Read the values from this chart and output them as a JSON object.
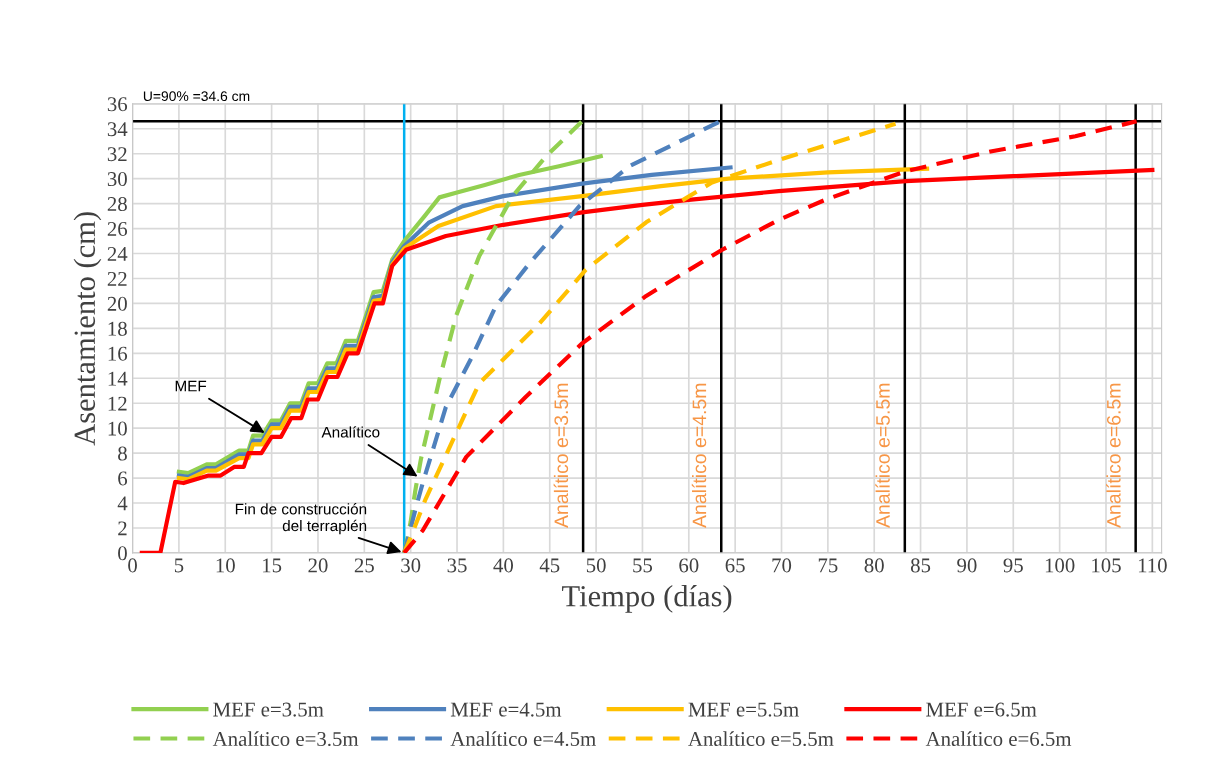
{
  "chart_data": {
    "type": "line",
    "xlabel": "Tiempo (días)",
    "ylabel": "Asentamiento (cm)",
    "xlim": [
      0,
      111
    ],
    "ylim": [
      0,
      36
    ],
    "xticks": [
      0,
      5,
      10,
      15,
      20,
      25,
      30,
      35,
      40,
      45,
      50,
      55,
      60,
      65,
      70,
      75,
      80,
      85,
      90,
      95,
      100,
      105,
      110
    ],
    "yticks": [
      0,
      2,
      4,
      6,
      8,
      10,
      12,
      14,
      16,
      18,
      20,
      22,
      24,
      26,
      28,
      30,
      32,
      34,
      36
    ],
    "grid": true,
    "legend": "bottom",
    "marker": "none",
    "series": [
      {
        "name": "MEF e=3.5m",
        "color": "#92d050",
        "line_style": "solid",
        "x": [
          5,
          6,
          8,
          9,
          11.5,
          12.5,
          13,
          14,
          15,
          16,
          17,
          18.2,
          19,
          20,
          21,
          22,
          23,
          24.3,
          26,
          27,
          28,
          29.3,
          31.5,
          33.1,
          35,
          38,
          41.7,
          46,
          50.5
        ],
        "values": [
          6.5,
          6.4,
          7.1,
          7.1,
          8.2,
          8.2,
          9.4,
          9.4,
          10.6,
          10.6,
          12.0,
          12.0,
          13.6,
          13.6,
          15.2,
          15.2,
          17.0,
          17.0,
          20.9,
          21.0,
          23.5,
          25.0,
          27.0,
          28.5,
          28.9,
          29.5,
          30.3,
          31.0,
          31.8
        ]
      },
      {
        "name": "MEF e=4.5m",
        "color": "#4f81bd",
        "line_style": "solid",
        "x": [
          5,
          6,
          8,
          9,
          11.5,
          12.5,
          13,
          14,
          15,
          16,
          17,
          18.2,
          19,
          20,
          21,
          22,
          23,
          24.3,
          26,
          27,
          28,
          29.3,
          32,
          35.6,
          40,
          48.5,
          56,
          64.5
        ],
        "values": [
          6.2,
          6.1,
          6.8,
          6.8,
          7.9,
          7.9,
          9.0,
          9.0,
          10.3,
          10.3,
          11.7,
          11.7,
          13.2,
          13.2,
          14.8,
          14.8,
          16.6,
          16.6,
          20.5,
          20.6,
          23.3,
          24.6,
          26.5,
          27.8,
          28.6,
          29.6,
          30.3,
          30.9
        ]
      },
      {
        "name": "MEF e=5.5m",
        "color": "#ffc000",
        "line_style": "solid",
        "x": [
          5,
          6,
          8,
          9,
          11.5,
          12.5,
          13,
          14,
          15,
          16,
          17,
          18.2,
          19,
          20,
          21,
          22,
          23,
          24.3,
          26,
          27,
          28,
          29.3,
          33,
          39.2,
          48.5,
          57,
          64.3,
          75,
          85.7
        ],
        "values": [
          6.0,
          5.9,
          6.6,
          6.6,
          7.6,
          7.6,
          8.7,
          8.7,
          10.0,
          10.0,
          11.4,
          11.4,
          12.9,
          12.9,
          14.5,
          14.5,
          16.3,
          16.3,
          20.2,
          20.3,
          23.1,
          24.4,
          26.2,
          27.8,
          28.6,
          29.4,
          30.0,
          30.5,
          30.8
        ]
      },
      {
        "name": "MEF e=6.5m",
        "color": "#ff0000",
        "line_style": "solid",
        "x": [
          1,
          2,
          3,
          4.6,
          5.5,
          8.2,
          9.5,
          11,
          12,
          12.5,
          13.9,
          15,
          16,
          17.1,
          18.2,
          18.9,
          20,
          21,
          22.1,
          23.2,
          24.3,
          26.1,
          27,
          28,
          29.5,
          33.8,
          40,
          48.5,
          55,
          60,
          69.7,
          83.4,
          95,
          110
        ],
        "values": [
          0,
          0,
          0,
          5.7,
          5.6,
          6.2,
          6.2,
          6.9,
          6.9,
          8.0,
          8.0,
          9.3,
          9.3,
          10.8,
          10.8,
          12.3,
          12.3,
          14.1,
          14.1,
          16.0,
          16.0,
          20.0,
          20.0,
          23.0,
          24.3,
          25.4,
          26.3,
          27.3,
          27.9,
          28.3,
          29.0,
          29.8,
          30.2,
          30.7
        ]
      },
      {
        "name": "Analítico e=3.5m",
        "color": "#92d050",
        "line_style": "dashed",
        "x": [
          29.3,
          29.6,
          30,
          30.5,
          31.1,
          33.1,
          34.9,
          37.4,
          41.0,
          44.6,
          48.5
        ],
        "values": [
          0,
          1,
          2.5,
          5,
          7.5,
          13.9,
          19.0,
          23.8,
          28.6,
          31.8,
          34.6
        ]
      },
      {
        "name": "Analítico e=4.5m",
        "color": "#4f81bd",
        "line_style": "dashed",
        "x": [
          29.3,
          30,
          30.7,
          31.3,
          33.8,
          36.6,
          39.2,
          42.8,
          48.2,
          53.6,
          63.4
        ],
        "values": [
          0,
          2,
          4,
          5.6,
          11.7,
          15.7,
          19.8,
          23.2,
          27.8,
          31.0,
          34.6
        ]
      },
      {
        "name": "Analítico e=5.5m",
        "color": "#ffc000",
        "line_style": "dashed",
        "x": [
          29.3,
          30.3,
          31.6,
          37.4,
          43.9,
          48.9,
          55.4,
          62.5,
          69.7,
          82.3
        ],
        "values": [
          0,
          1.8,
          4.3,
          13.6,
          18.4,
          22.7,
          26.5,
          29.7,
          31.5,
          34.4
        ]
      },
      {
        "name": "Analítico e=6.5m",
        "color": "#ff0000",
        "line_style": "dashed",
        "x": [
          29.3,
          31.3,
          36,
          42.4,
          48.5,
          55.4,
          63.6,
          69.7,
          74.7,
          83.4,
          92.7,
          101.7,
          108.3
        ],
        "values": [
          0,
          1.8,
          7.7,
          12.5,
          16.8,
          20.6,
          24.3,
          26.7,
          28.3,
          30.6,
          32.2,
          33.4,
          34.6
        ]
      }
    ],
    "ref_lines": [
      {
        "axis": "y",
        "value": 34.6,
        "label": "U=90% =34.6 cm",
        "color": "#000000"
      },
      {
        "axis": "x",
        "value": 29.3,
        "color": "#00b0f0"
      },
      {
        "axis": "x",
        "value": 48.6,
        "color": "#000000"
      },
      {
        "axis": "x",
        "value": 63.5,
        "color": "#000000"
      },
      {
        "axis": "x",
        "value": 83.3,
        "color": "#000000"
      },
      {
        "axis": "x",
        "value": 108.2,
        "color": "#000000"
      }
    ],
    "annotations": [
      {
        "text": "MEF",
        "x": 14.5,
        "y": 9.5
      },
      {
        "text": "Analítico",
        "x": 31,
        "y": 6
      },
      {
        "text": "Fin de construcción\ndel terraplén",
        "x": 29.3,
        "y": 0
      },
      {
        "text": "Analítico e=3.5m",
        "x": 48.6,
        "y": 2
      },
      {
        "text": "Analítico e=4.5m",
        "x": 63.5,
        "y": 2
      },
      {
        "text": "Analítico e=5.5m",
        "x": 83.3,
        "y": 2
      },
      {
        "text": "Analítico e=6.5m",
        "x": 108.2,
        "y": 2
      }
    ]
  }
}
